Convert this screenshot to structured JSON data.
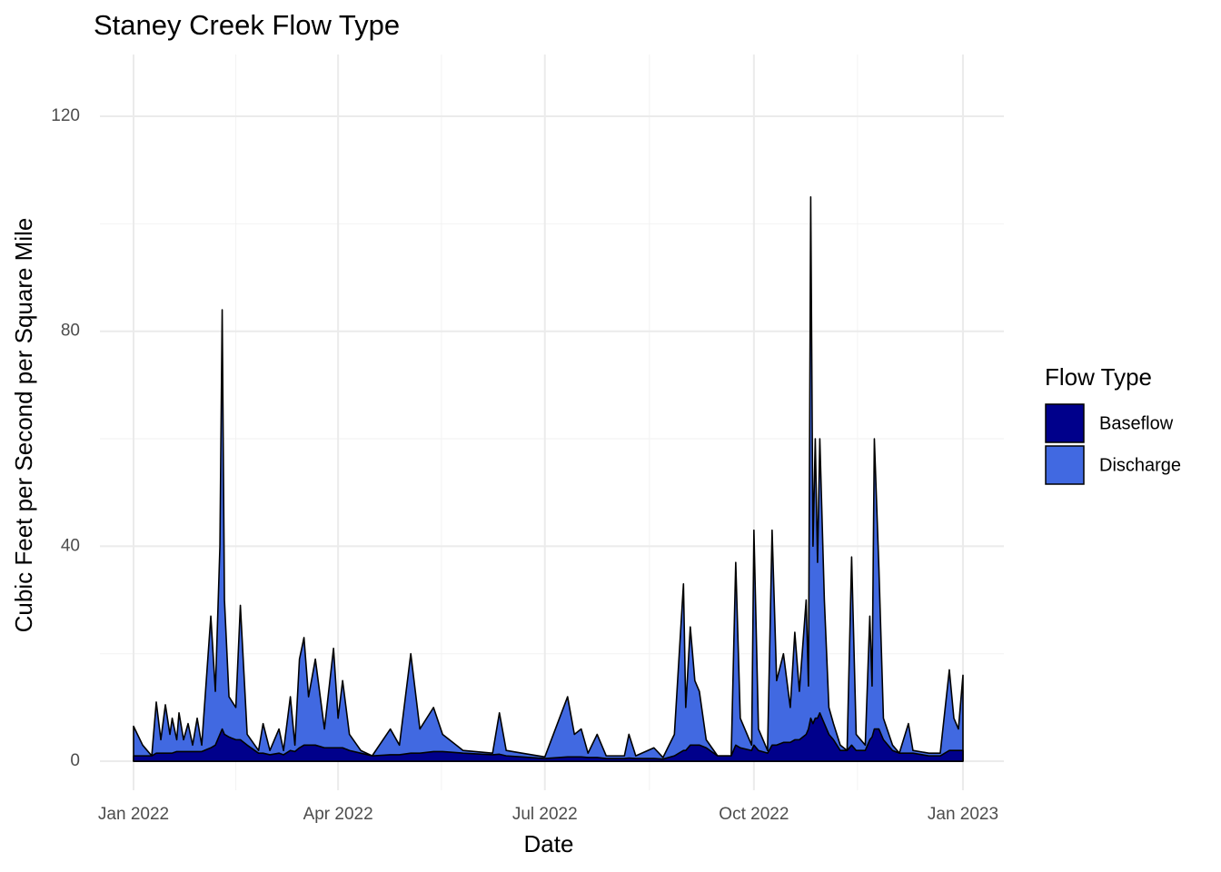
{
  "chart_data": {
    "type": "area",
    "title": "Staney Creek Flow Type",
    "x_label": "Date",
    "y_label": "Cubic Feet per Second per Square Mile",
    "legend_title": "Flow Type",
    "legend_position": "right",
    "grid": true,
    "xlim": [
      -14.8,
      383
    ],
    "ylim": [
      -5.4,
      131.5
    ],
    "xticks": [
      {
        "value": 0,
        "label": "Jan 2022"
      },
      {
        "value": 90,
        "label": "Apr 2022"
      },
      {
        "value": 181,
        "label": "Jul 2022"
      },
      {
        "value": 273,
        "label": "Oct 2022"
      },
      {
        "value": 365,
        "label": "Jan 2023"
      }
    ],
    "yticks": [
      0,
      40,
      80,
      120
    ],
    "x_minor_grid": [
      45,
      135.5,
      227,
      318.6
    ],
    "y_minor_grid": [
      20,
      60,
      100
    ],
    "x": [
      0,
      4,
      8,
      10,
      12,
      14,
      16,
      17,
      19,
      20,
      22,
      24,
      26,
      28,
      30,
      34,
      36,
      38,
      39,
      40,
      42,
      45,
      47,
      50,
      55,
      57,
      60,
      64,
      66,
      69,
      71,
      73,
      75,
      77,
      80,
      84,
      88,
      90,
      92,
      95,
      100,
      105,
      113,
      117,
      122,
      126,
      132,
      136,
      145,
      158,
      161,
      164,
      171,
      181,
      191,
      194,
      197,
      200,
      204,
      208,
      216,
      218,
      221,
      229,
      233,
      238,
      242,
      243,
      245,
      247,
      249,
      252,
      257,
      263,
      265,
      267,
      272,
      273,
      275,
      279,
      281,
      283,
      286,
      289,
      291,
      293,
      296,
      297,
      298,
      299,
      300,
      301,
      302,
      304,
      306,
      308,
      311,
      314,
      316,
      318,
      322,
      324,
      325,
      326,
      328,
      330,
      334,
      337,
      341,
      343,
      350,
      355,
      359,
      361,
      363,
      365
    ],
    "series": [
      {
        "name": "Baseflow",
        "color": "#00008B",
        "values": [
          1,
          1,
          1,
          1.5,
          1.5,
          1.5,
          1.5,
          1.5,
          1.8,
          1.8,
          1.8,
          1.8,
          1.8,
          1.8,
          1.8,
          2.5,
          3,
          5,
          6,
          5,
          4.5,
          4,
          4,
          3,
          1.5,
          1.5,
          1.2,
          1.5,
          1.2,
          2,
          1.8,
          2.5,
          3,
          3,
          3,
          2.5,
          2.5,
          2.5,
          2.5,
          2,
          1.5,
          1,
          1.2,
          1.2,
          1.5,
          1.5,
          1.8,
          1.8,
          1.5,
          1.2,
          1.3,
          1,
          0.8,
          0.5,
          0.8,
          0.8,
          0.8,
          0.7,
          0.7,
          0.5,
          0.5,
          0.6,
          0.5,
          0.5,
          0.4,
          1,
          2,
          2,
          3,
          3,
          3,
          2.5,
          1,
          1,
          3,
          2.5,
          2,
          3,
          2,
          1.5,
          3,
          3,
          3.5,
          3.5,
          4,
          4,
          5,
          6,
          8,
          7,
          8,
          8,
          9,
          7,
          5,
          4,
          2,
          2,
          3,
          2,
          2,
          4,
          4.5,
          6,
          6,
          4,
          2,
          1.5,
          1.5,
          1.5,
          1,
          1,
          2,
          2,
          2,
          2
        ]
      },
      {
        "name": "Discharge",
        "color": "#4169E1",
        "values": [
          6.5,
          3,
          1,
          11,
          4,
          10.5,
          5,
          8,
          4,
          9,
          4,
          7,
          3,
          8,
          3,
          27,
          13,
          40,
          84,
          30,
          12,
          10,
          29,
          5,
          2,
          7,
          2,
          6,
          2,
          12,
          3,
          19,
          23,
          12,
          19,
          6,
          21,
          8,
          15,
          5,
          2,
          1,
          6,
          3,
          20,
          6,
          10,
          5,
          2,
          1.5,
          9,
          2,
          1.5,
          0.8,
          12,
          5,
          6,
          1.5,
          5,
          1,
          1,
          5,
          1,
          2.5,
          0.7,
          5,
          33,
          10,
          25,
          15,
          13,
          4,
          1,
          1,
          37,
          8,
          3,
          43,
          6,
          2,
          43,
          15,
          20,
          10,
          24,
          13,
          30,
          14,
          105,
          40,
          60,
          37,
          60,
          30,
          10,
          7,
          3,
          2,
          38,
          5,
          3,
          27,
          14,
          60,
          36,
          8,
          3,
          1.5,
          7,
          2,
          1.5,
          1.5,
          17,
          8,
          6,
          16
        ]
      }
    ]
  }
}
